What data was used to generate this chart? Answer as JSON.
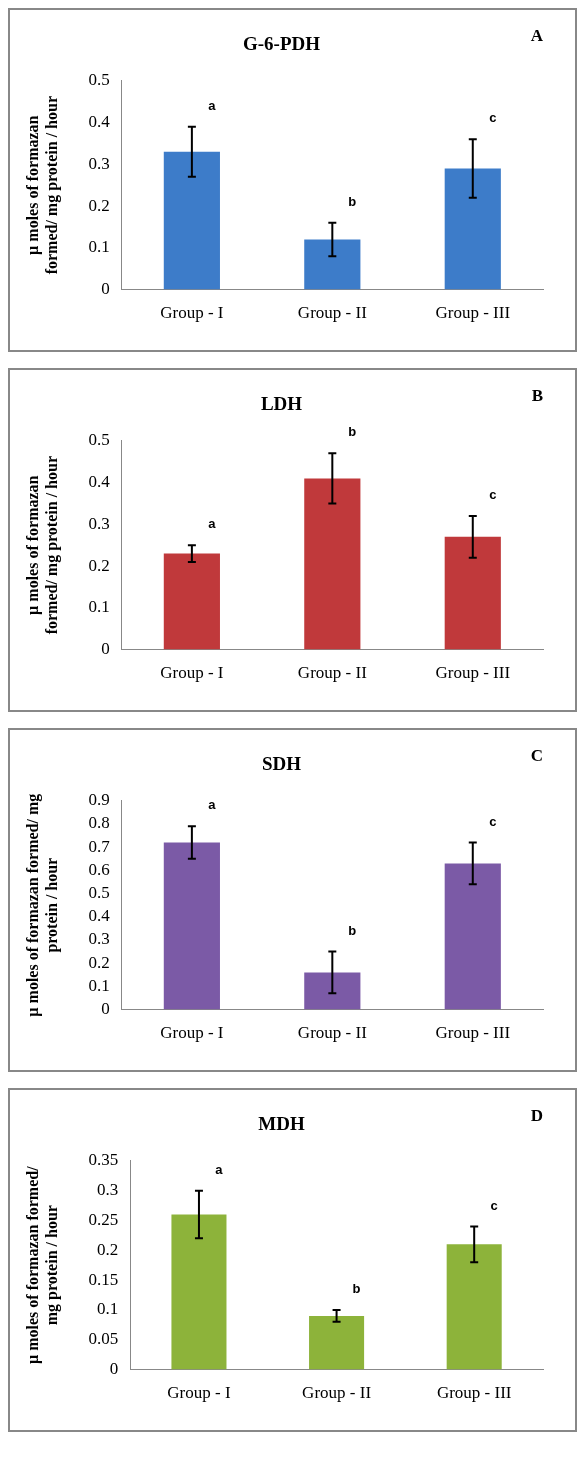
{
  "chart_data": [
    {
      "type": "bar",
      "title": "G-6-PDH",
      "ylabel": "µ moles of formazan\nformed/ mg protein / hour",
      "categories": [
        "Group - I",
        "Group - II",
        "Group - III"
      ],
      "values": [
        0.33,
        0.12,
        0.29
      ],
      "errors": [
        0.06,
        0.04,
        0.07
      ],
      "color": "#3d7cc9",
      "ylim": [
        0,
        0.5
      ],
      "yticks": [
        0,
        0.1,
        0.2,
        0.3,
        0.4,
        0.5
      ],
      "grid": false,
      "legend": false,
      "annotations": [
        "A",
        "a",
        "b",
        "c"
      ]
    },
    {
      "type": "bar",
      "title": "LDH",
      "ylabel": "µ moles of formazan\nformed/ mg protein / hour",
      "categories": [
        "Group - I",
        "Group - II",
        "Group - III"
      ],
      "values": [
        0.23,
        0.41,
        0.27
      ],
      "errors": [
        0.02,
        0.06,
        0.05
      ],
      "color": "#c0393b",
      "ylim": [
        0,
        0.5
      ],
      "yticks": [
        0,
        0.1,
        0.2,
        0.3,
        0.4,
        0.5
      ],
      "grid": false,
      "legend": false,
      "annotations": [
        "B",
        "a",
        "b",
        "c"
      ]
    },
    {
      "type": "bar",
      "title": "SDH",
      "ylabel": "µ moles of formazan formed/ mg\nprotein / hour",
      "categories": [
        "Group - I",
        "Group - II",
        "Group - III"
      ],
      "values": [
        0.72,
        0.16,
        0.63
      ],
      "errors": [
        0.07,
        0.09,
        0.09
      ],
      "color": "#7b5aa6",
      "ylim": [
        0,
        0.9
      ],
      "yticks": [
        0,
        0.1,
        0.2,
        0.3,
        0.4,
        0.5,
        0.6,
        0.7,
        0.8,
        0.9
      ],
      "grid": false,
      "legend": false,
      "annotations": [
        "C",
        "a",
        "b",
        "c"
      ]
    },
    {
      "type": "bar",
      "title": "MDH",
      "ylabel": "µ moles of formazan formed/\nmg protein / hour",
      "categories": [
        "Group - I",
        "Group - II",
        "Group - III"
      ],
      "values": [
        0.26,
        0.09,
        0.21
      ],
      "errors": [
        0.04,
        0.01,
        0.03
      ],
      "color": "#8db33a",
      "ylim": [
        0,
        0.35
      ],
      "yticks": [
        0,
        0.05,
        0.1,
        0.15,
        0.2,
        0.25,
        0.3,
        0.35
      ],
      "grid": false,
      "legend": false,
      "annotations": [
        "D",
        "a",
        "b",
        "c"
      ]
    }
  ]
}
